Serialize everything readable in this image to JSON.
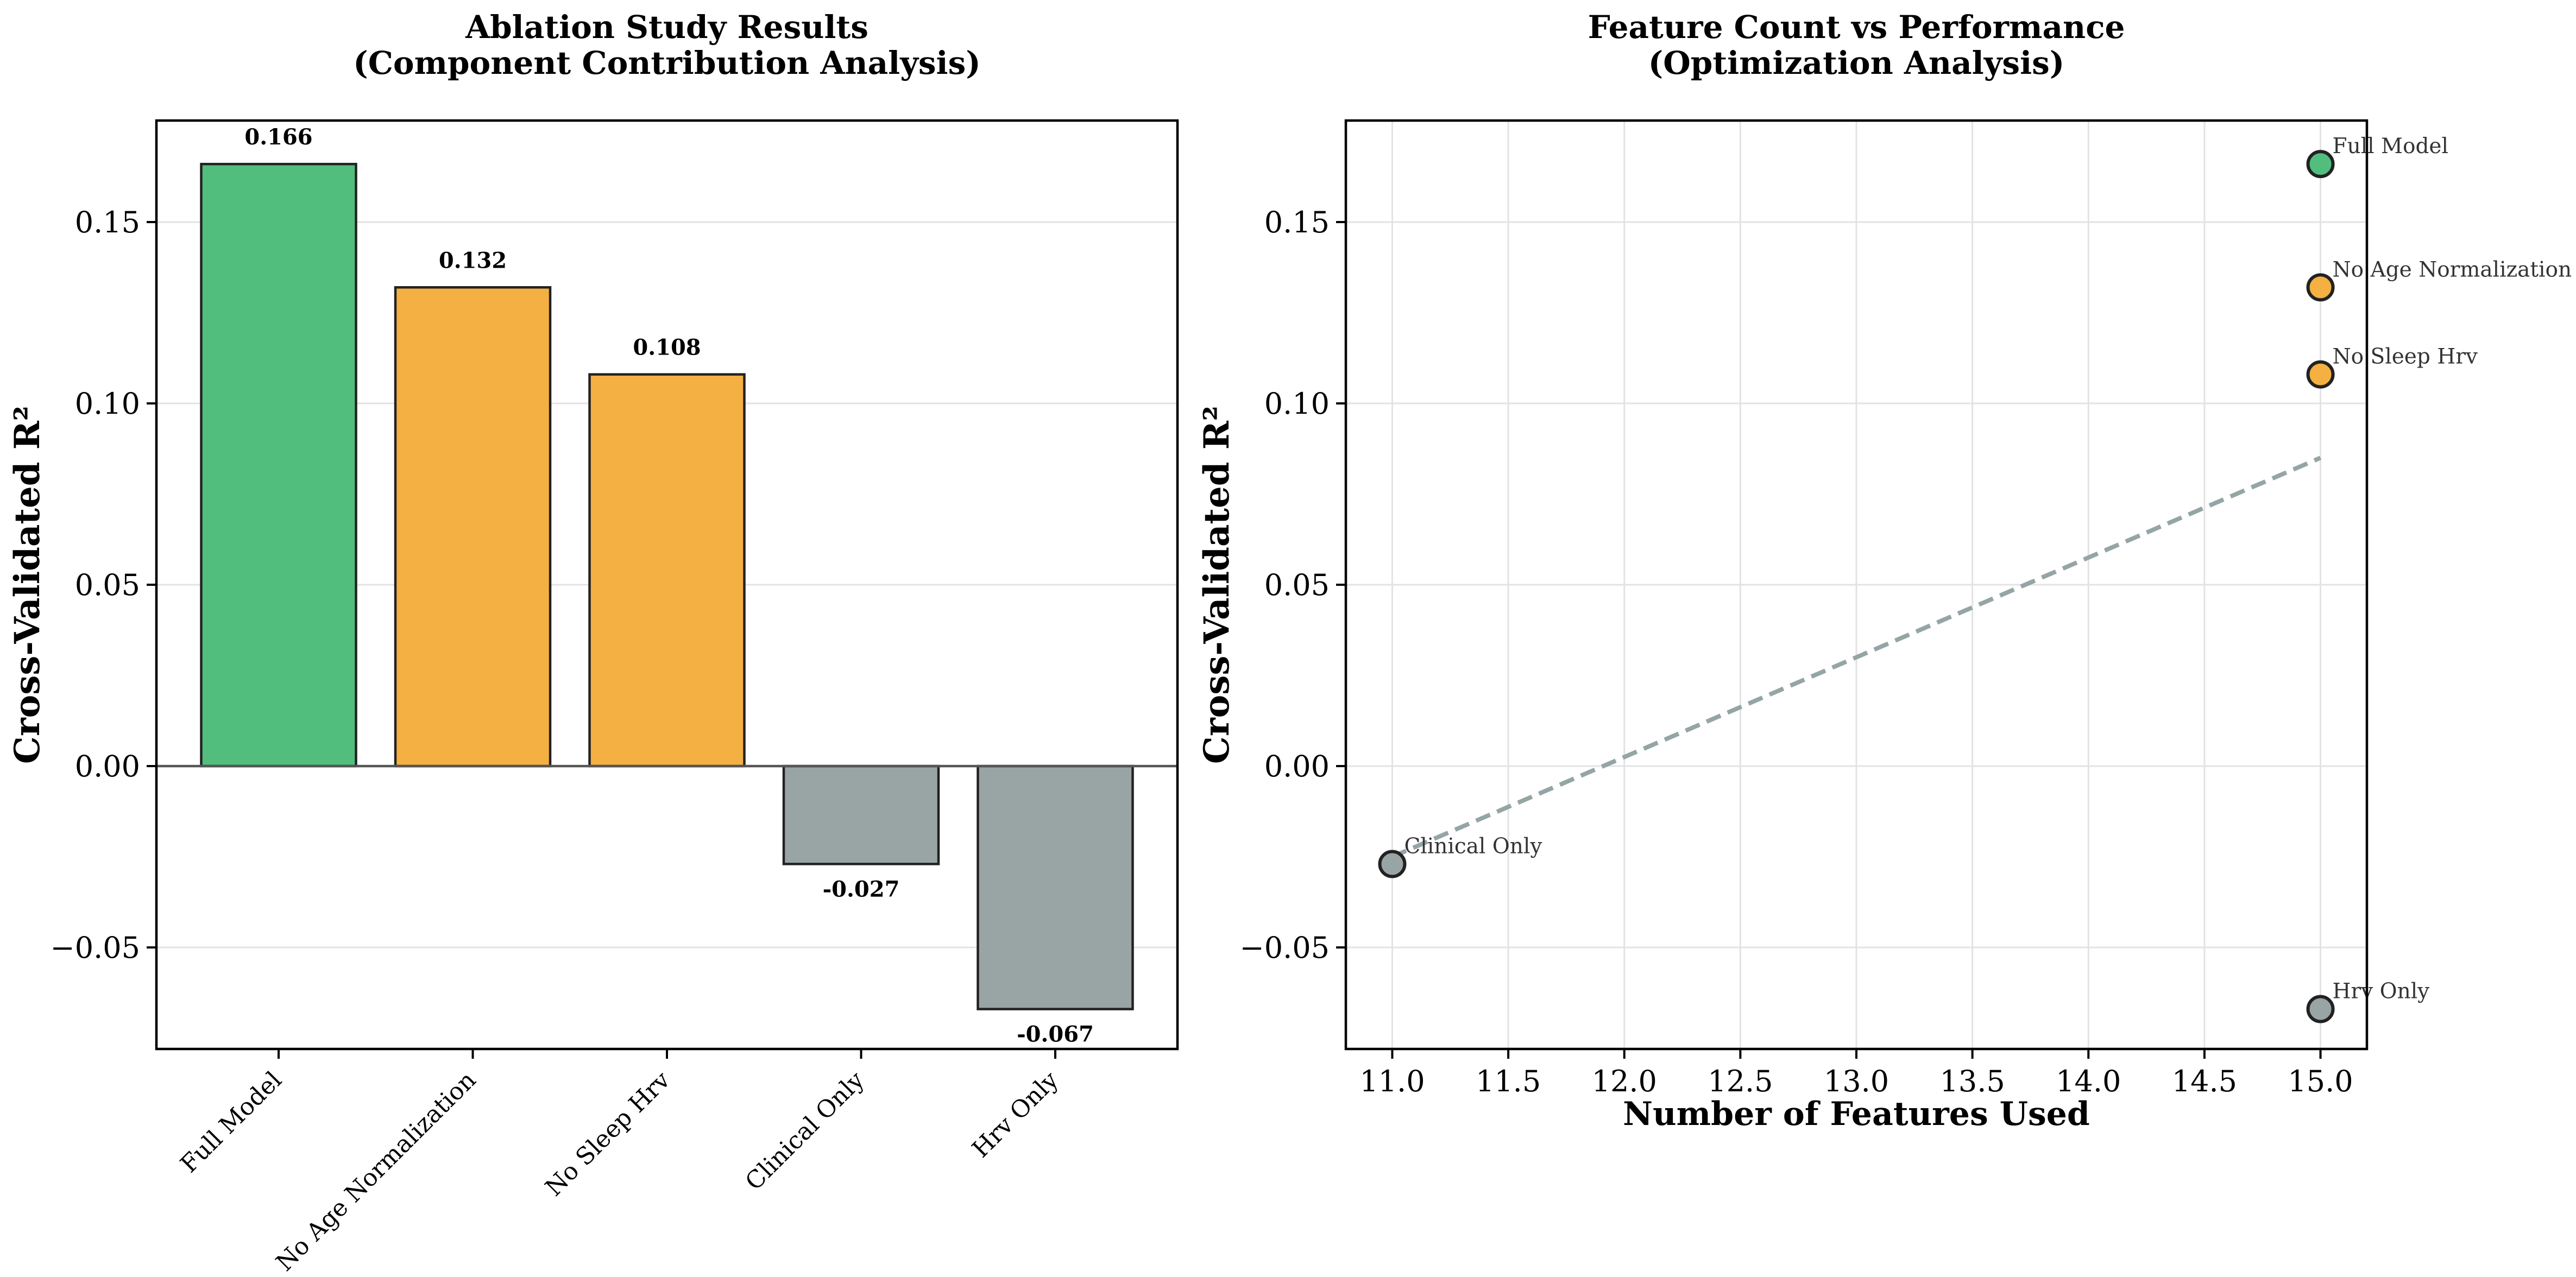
{
  "chart_data": [
    {
      "type": "bar",
      "title": "Ablation Study Results\n(Component Contribution Analysis)",
      "xlabel": "",
      "ylabel": "Cross-Validated R²",
      "categories": [
        "Full Model",
        "No Age Normalization",
        "No Sleep Hrv",
        "Clinical Only",
        "Hrv Only"
      ],
      "values": [
        0.166,
        0.132,
        0.108,
        -0.027,
        -0.067
      ],
      "value_labels": [
        "0.166",
        "0.132",
        "0.108",
        "-0.027",
        "-0.067"
      ],
      "colors": [
        "#52be7e",
        "#f4b042",
        "#f4b042",
        "#98a5a4",
        "#98a5a4"
      ],
      "ylim": [
        -0.078,
        0.178
      ],
      "yticks": [
        -0.05,
        0.0,
        0.05,
        0.1,
        0.15
      ],
      "ytick_labels": [
        "−0.05",
        "0.00",
        "0.05",
        "0.10",
        "0.15"
      ],
      "grid": true,
      "zero_line": true
    },
    {
      "type": "scatter",
      "title": "Feature Count vs Performance\n(Optimization Analysis)",
      "xlabel": "Number of Features Used",
      "ylabel": "Cross-Validated R²",
      "points": [
        {
          "label": "Full Model",
          "x": 15,
          "y": 0.166,
          "color": "#52be7e"
        },
        {
          "label": "No Age Normalization",
          "x": 15,
          "y": 0.132,
          "color": "#f4b042"
        },
        {
          "label": "No Sleep Hrv",
          "x": 15,
          "y": 0.108,
          "color": "#f4b042"
        },
        {
          "label": "Clinical Only",
          "x": 11,
          "y": -0.027,
          "color": "#98a5a4"
        },
        {
          "label": "Hrv Only",
          "x": 15,
          "y": -0.067,
          "color": "#98a5a4"
        }
      ],
      "trendline": {
        "x": [
          11,
          15
        ],
        "y": [
          -0.025,
          0.085
        ],
        "color": "#95a5a6",
        "style": "dashed"
      },
      "xlim": [
        10.8,
        15.2
      ],
      "ylim": [
        -0.078,
        0.178
      ],
      "xticks": [
        11.0,
        11.5,
        12.0,
        12.5,
        13.0,
        13.5,
        14.0,
        14.5,
        15.0
      ],
      "xtick_labels": [
        "11.0",
        "11.5",
        "12.0",
        "12.5",
        "13.0",
        "13.5",
        "14.0",
        "14.5",
        "15.0"
      ],
      "yticks": [
        -0.05,
        0.0,
        0.05,
        0.1,
        0.15
      ],
      "ytick_labels": [
        "−0.05",
        "0.00",
        "0.05",
        "0.10",
        "0.15"
      ],
      "grid": true
    }
  ]
}
